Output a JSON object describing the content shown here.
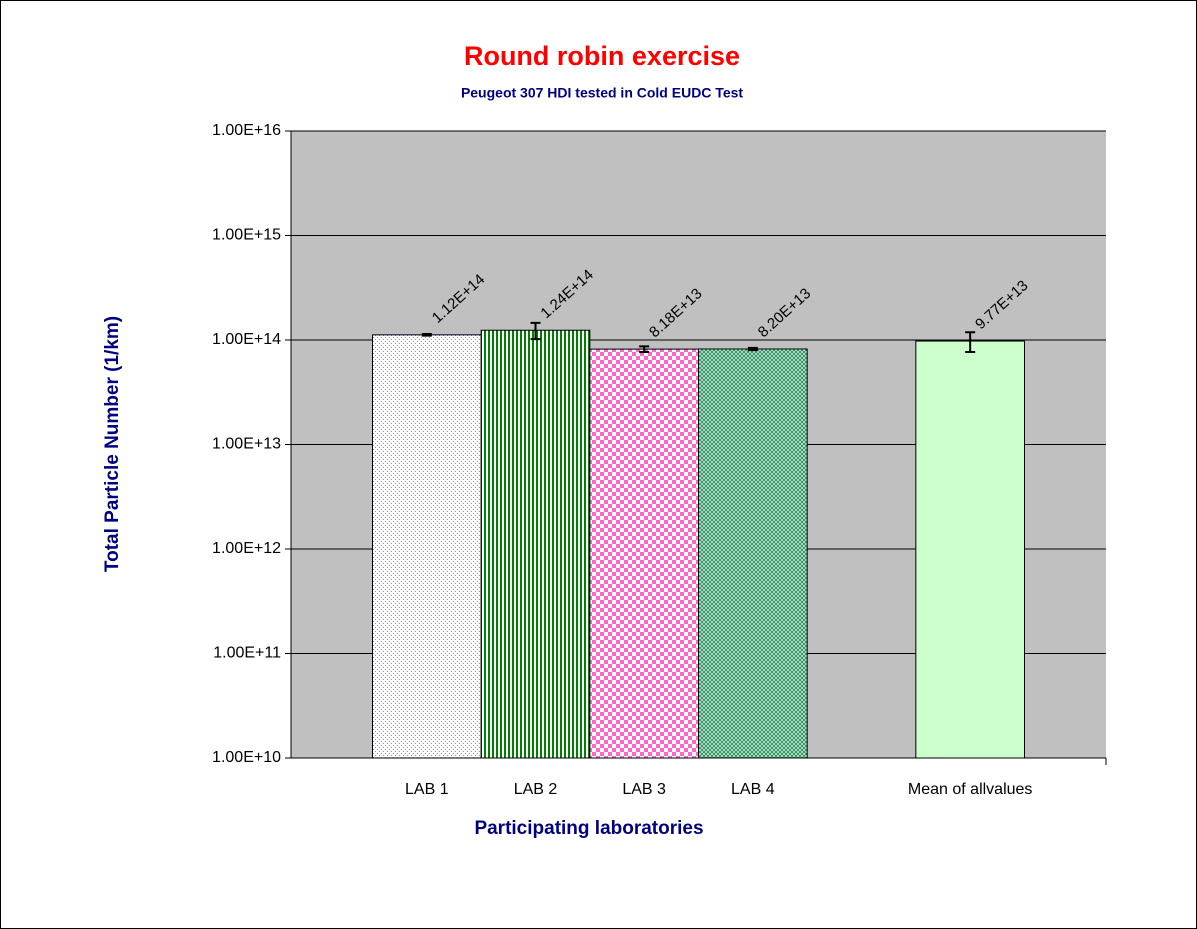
{
  "chart_data": {
    "type": "bar",
    "title": "Round robin exercise",
    "subtitle": "Peugeot 307 HDI tested in Cold EUDC Test",
    "x_label": "Participating laboratories",
    "y_label": "Total Particle Number (1/km)",
    "categories": [
      "LAB 1",
      "LAB 2",
      "LAB 3",
      "LAB 4",
      null,
      "Mean of allvalues"
    ],
    "values": [
      112000000000000.0,
      124000000000000.0,
      81800000000000.0,
      82000000000000.0,
      null,
      97700000000000.0
    ],
    "value_labels": [
      "1.12E+14",
      "1.24E+14",
      "8.18E+13",
      "8.20E+13",
      null,
      "9.77E+13"
    ],
    "errors": [
      2000000000000.0,
      22000000000000.0,
      5000000000000.0,
      2000000000000.0,
      null,
      21000000000000.0
    ],
    "bar_colors": [
      "#8080ff",
      "#008000",
      "#ff66cc",
      "#339966",
      null,
      "#ccffcc"
    ],
    "bar_patterns": [
      "dots",
      "vertical-stripes",
      "checker",
      "crosshatch",
      null,
      "solid"
    ],
    "log_scale": true,
    "ylim": [
      10000000000.0,
      1e+16
    ],
    "yticks": [
      {
        "value": 10000000000.0,
        "label": "1.00E+10"
      },
      {
        "value": 100000000000.0,
        "label": "1.00E+11"
      },
      {
        "value": 1000000000000.0,
        "label": "1.00E+12"
      },
      {
        "value": 10000000000000.0,
        "label": "1.00E+13"
      },
      {
        "value": 100000000000000.0,
        "label": "1.00E+14"
      },
      {
        "value": 1000000000000000.0,
        "label": "1.00E+15"
      },
      {
        "value": 1e+16,
        "label": "1.00E+16"
      }
    ],
    "grid": true,
    "plot_background": "#c0c0c0",
    "title_color": "#ff0000",
    "label_color": "#000080"
  }
}
